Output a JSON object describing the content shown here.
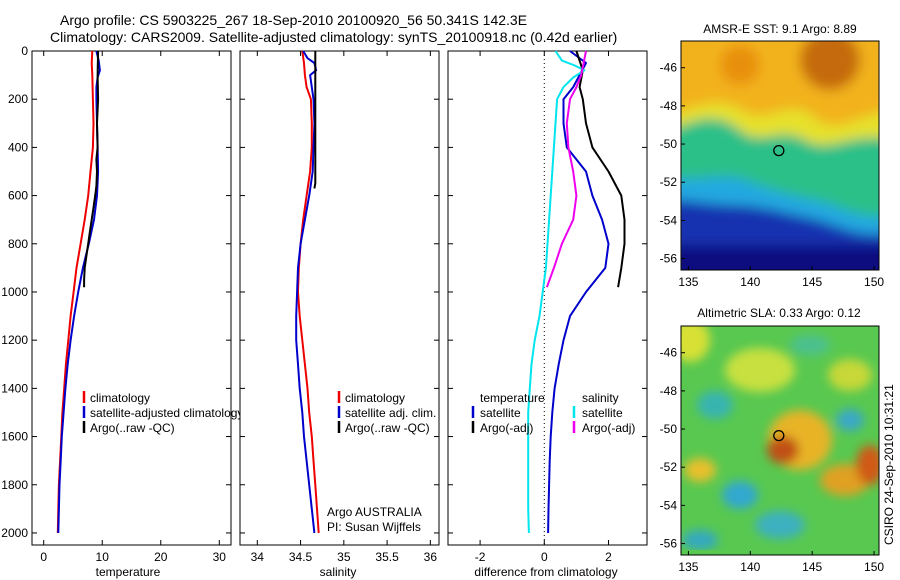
{
  "title_line1": "Argo profile: CS 5903225_267 18-Sep-2010 20100920_56 50.341S 142.3E",
  "title_line2": "Climatology: CARS2009. Satellite-adjusted climatology: synTS_20100918.nc (0.42d earlier)",
  "credit": "CSIRO 24-Sep-2010 10:31:21",
  "chart_data": [
    {
      "id": "temperature",
      "type": "line",
      "xlabel": "temperature",
      "ylabel": "",
      "xlim": [
        -2,
        32
      ],
      "ylim": [
        2050,
        0
      ],
      "xticks": [
        0,
        10,
        20,
        30
      ],
      "yticks": [
        0,
        200,
        400,
        600,
        800,
        1000,
        1200,
        1400,
        1600,
        1800,
        2000
      ],
      "legend": {
        "position": "lower-center",
        "entries": [
          "climatology",
          "satellite-adjusted climatology",
          "Argo(..raw -QC)"
        ]
      },
      "series": [
        {
          "name": "climatology",
          "color": "#ee0000",
          "points": [
            [
              8.3,
              0
            ],
            [
              8.2,
              50
            ],
            [
              8.3,
              100
            ],
            [
              8.4,
              200
            ],
            [
              8.5,
              300
            ],
            [
              8.4,
              400
            ],
            [
              8.0,
              500
            ],
            [
              7.6,
              600
            ],
            [
              7.0,
              700
            ],
            [
              6.3,
              800
            ],
            [
              5.6,
              900
            ],
            [
              5.1,
              1000
            ],
            [
              4.6,
              1100
            ],
            [
              4.2,
              1200
            ],
            [
              3.8,
              1300
            ],
            [
              3.5,
              1400
            ],
            [
              3.2,
              1500
            ],
            [
              3.0,
              1600
            ],
            [
              2.8,
              1700
            ],
            [
              2.6,
              1800
            ],
            [
              2.5,
              1900
            ],
            [
              2.4,
              2000
            ]
          ]
        },
        {
          "name": "satellite-adjusted climatology",
          "color": "#0000cc",
          "points": [
            [
              9.0,
              0
            ],
            [
              9.4,
              40
            ],
            [
              9.6,
              80
            ],
            [
              9.2,
              110
            ],
            [
              9.0,
              150
            ],
            [
              9.0,
              200
            ],
            [
              9.1,
              300
            ],
            [
              9.2,
              400
            ],
            [
              9.3,
              500
            ],
            [
              9.1,
              600
            ],
            [
              8.6,
              700
            ],
            [
              7.7,
              800
            ],
            [
              6.7,
              900
            ],
            [
              5.9,
              1000
            ],
            [
              5.2,
              1100
            ],
            [
              4.6,
              1200
            ],
            [
              4.1,
              1300
            ],
            [
              3.7,
              1400
            ],
            [
              3.4,
              1500
            ],
            [
              3.1,
              1600
            ],
            [
              2.9,
              1700
            ],
            [
              2.7,
              1800
            ],
            [
              2.6,
              1900
            ],
            [
              2.5,
              2000
            ]
          ]
        },
        {
          "name": "Argo(..raw -QC)",
          "color": "#000000",
          "points": [
            [
              9.3,
              0
            ],
            [
              9.2,
              100
            ],
            [
              9.3,
              200
            ],
            [
              9.1,
              300
            ],
            [
              9.2,
              400
            ],
            [
              9.0,
              450
            ],
            [
              9.1,
              500
            ],
            [
              9.0,
              560
            ],
            [
              8.8,
              600
            ],
            [
              8.5,
              650
            ],
            [
              8.2,
              700
            ],
            [
              7.9,
              750
            ],
            [
              7.6,
              800
            ],
            [
              7.3,
              850
            ],
            [
              7.0,
              900
            ],
            [
              6.9,
              950
            ],
            [
              6.9,
              980
            ]
          ]
        }
      ]
    },
    {
      "id": "salinity",
      "type": "line",
      "xlabel": "salinity",
      "ylabel": "",
      "xlim": [
        33.8,
        36.1
      ],
      "ylim": [
        2050,
        0
      ],
      "xticks": [
        34,
        34.5,
        35,
        35.5,
        36
      ],
      "yticks": [
        0,
        200,
        400,
        600,
        800,
        1000,
        1200,
        1400,
        1600,
        1800,
        2000
      ],
      "legend": {
        "position": "lower-center",
        "entries": [
          "climatology",
          "satellite adj. clim.",
          "Argo(..raw -QC)"
        ]
      },
      "annotation": [
        "Argo AUSTRALIA",
        "PI: Susan Wijffels"
      ],
      "series": [
        {
          "name": "climatology",
          "color": "#ee0000",
          "points": [
            [
              34.52,
              0
            ],
            [
              34.54,
              50
            ],
            [
              34.55,
              100
            ],
            [
              34.57,
              150
            ],
            [
              34.62,
              200
            ],
            [
              34.63,
              300
            ],
            [
              34.63,
              400
            ],
            [
              34.61,
              500
            ],
            [
              34.57,
              600
            ],
            [
              34.53,
              700
            ],
            [
              34.5,
              800
            ],
            [
              34.48,
              900
            ],
            [
              34.47,
              1000
            ],
            [
              34.49,
              1100
            ],
            [
              34.52,
              1200
            ],
            [
              34.55,
              1300
            ],
            [
              34.58,
              1400
            ],
            [
              34.6,
              1500
            ],
            [
              34.63,
              1600
            ],
            [
              34.65,
              1700
            ],
            [
              34.67,
              1800
            ],
            [
              34.69,
              1900
            ],
            [
              34.71,
              2000
            ]
          ]
        },
        {
          "name": "satellite adj. clim.",
          "color": "#0000cc",
          "points": [
            [
              34.53,
              0
            ],
            [
              34.58,
              30
            ],
            [
              34.66,
              50
            ],
            [
              34.68,
              80
            ],
            [
              34.61,
              100
            ],
            [
              34.63,
              150
            ],
            [
              34.65,
              200
            ],
            [
              34.66,
              300
            ],
            [
              34.65,
              400
            ],
            [
              34.64,
              500
            ],
            [
              34.6,
              600
            ],
            [
              34.55,
              700
            ],
            [
              34.5,
              800
            ],
            [
              34.47,
              900
            ],
            [
              34.46,
              1000
            ],
            [
              34.45,
              1100
            ],
            [
              34.45,
              1200
            ],
            [
              34.47,
              1300
            ],
            [
              34.49,
              1400
            ],
            [
              34.52,
              1500
            ],
            [
              34.54,
              1600
            ],
            [
              34.57,
              1700
            ],
            [
              34.6,
              1800
            ],
            [
              34.63,
              1900
            ],
            [
              34.66,
              2000
            ]
          ]
        },
        {
          "name": "Argo(..raw -QC)",
          "color": "#000000",
          "points": [
            [
              34.67,
              0
            ],
            [
              34.67,
              100
            ],
            [
              34.67,
              200
            ],
            [
              34.67,
              300
            ],
            [
              34.67,
              400
            ],
            [
              34.67,
              500
            ],
            [
              34.67,
              550
            ],
            [
              34.66,
              570
            ]
          ]
        }
      ]
    },
    {
      "id": "difference",
      "type": "line",
      "xlabel": "difference from climatology",
      "ylabel": "",
      "xlim": [
        -3.0,
        3.2
      ],
      "ylim": [
        2050,
        0
      ],
      "xticks": [
        -2,
        0,
        2
      ],
      "yticks": [
        0,
        200,
        400,
        600,
        800,
        1000,
        1200,
        1400,
        1600,
        1800,
        2000
      ],
      "zero_line": 0,
      "legend": {
        "position": "lower-center",
        "headings": [
          "temperature",
          "salinity"
        ],
        "entries": [
          "satellite",
          "Argo(-adj)",
          "satellite",
          "Argo(-adj)"
        ]
      },
      "series": [
        {
          "name": "temperature satellite",
          "color": "#0000cc",
          "points": [
            [
              0.8,
              0
            ],
            [
              1.3,
              50
            ],
            [
              1.1,
              100
            ],
            [
              0.9,
              150
            ],
            [
              0.6,
              200
            ],
            [
              0.6,
              300
            ],
            [
              0.7,
              400
            ],
            [
              1.3,
              500
            ],
            [
              1.5,
              600
            ],
            [
              1.8,
              700
            ],
            [
              2.0,
              800
            ],
            [
              1.9,
              900
            ],
            [
              1.3,
              1000
            ],
            [
              0.8,
              1100
            ],
            [
              0.6,
              1200
            ],
            [
              0.45,
              1300
            ],
            [
              0.32,
              1400
            ],
            [
              0.25,
              1500
            ],
            [
              0.2,
              1600
            ],
            [
              0.17,
              1700
            ],
            [
              0.15,
              1800
            ],
            [
              0.13,
              1900
            ],
            [
              0.12,
              2000
            ]
          ]
        },
        {
          "name": "temperature Argo(-adj)",
          "color": "#000000",
          "points": [
            [
              1.0,
              0
            ],
            [
              1.2,
              80
            ],
            [
              1.1,
              150
            ],
            [
              1.2,
              200
            ],
            [
              1.3,
              300
            ],
            [
              1.5,
              400
            ],
            [
              2.0,
              500
            ],
            [
              2.4,
              600
            ],
            [
              2.5,
              700
            ],
            [
              2.5,
              800
            ],
            [
              2.4,
              900
            ],
            [
              2.3,
              980
            ]
          ]
        },
        {
          "name": "salinity satellite",
          "color": "#00e5ee",
          "points": [
            [
              0.35,
              0
            ],
            [
              0.55,
              40
            ],
            [
              0.95,
              60
            ],
            [
              1.25,
              80
            ],
            [
              0.9,
              110
            ],
            [
              0.6,
              150
            ],
            [
              0.4,
              200
            ],
            [
              0.35,
              300
            ],
            [
              0.3,
              400
            ],
            [
              0.25,
              500
            ],
            [
              0.2,
              600
            ],
            [
              0.15,
              700
            ],
            [
              0.1,
              800
            ],
            [
              0.05,
              900
            ],
            [
              -0.05,
              1000
            ],
            [
              -0.15,
              1100
            ],
            [
              -0.3,
              1200
            ],
            [
              -0.4,
              1300
            ],
            [
              -0.45,
              1400
            ],
            [
              -0.5,
              1500
            ],
            [
              -0.5,
              1600
            ],
            [
              -0.5,
              1700
            ],
            [
              -0.5,
              1800
            ],
            [
              -0.5,
              1900
            ],
            [
              -0.48,
              2000
            ]
          ]
        },
        {
          "name": "salinity Argo(-adj)",
          "color": "#ee00ee",
          "points": [
            [
              1.3,
              0
            ],
            [
              1.15,
              100
            ],
            [
              1.0,
              150
            ],
            [
              0.8,
              200
            ],
            [
              0.7,
              300
            ],
            [
              0.75,
              400
            ],
            [
              0.9,
              500
            ],
            [
              1.0,
              600
            ],
            [
              0.9,
              700
            ],
            [
              0.55,
              800
            ],
            [
              0.3,
              900
            ],
            [
              0.08,
              980
            ]
          ]
        }
      ]
    },
    {
      "id": "amsre_sst",
      "type": "heatmap",
      "title": "AMSR-E SST: 9.1 Argo: 8.89",
      "xlim": [
        134.4,
        150.4
      ],
      "ylim": [
        -56.6,
        -44.6
      ],
      "xticks": [
        135,
        140,
        145,
        150
      ],
      "yticks": [
        -46,
        -48,
        -50,
        -52,
        -54,
        -56
      ],
      "marker": [
        142.3,
        -50.341
      ]
    },
    {
      "id": "altimetric_sla",
      "type": "heatmap",
      "title": "Altimetric SLA: 0.33 Argo: 0.12",
      "xlim": [
        134.4,
        150.4
      ],
      "ylim": [
        -56.6,
        -44.6
      ],
      "xticks": [
        135,
        140,
        145,
        150
      ],
      "yticks": [
        -46,
        -48,
        -50,
        -52,
        -54,
        -56
      ],
      "marker": [
        142.3,
        -50.341
      ]
    }
  ]
}
